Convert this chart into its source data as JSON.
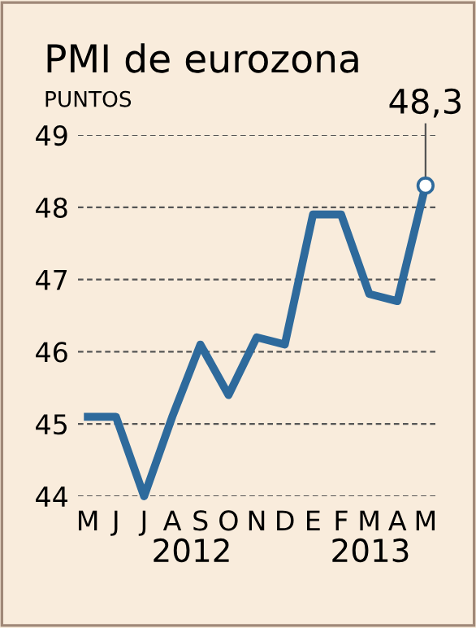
{
  "chart_data": {
    "type": "line",
    "title": "PMI de eurozona",
    "ylabel": "PUNTOS",
    "categories": [
      "M",
      "J",
      "J",
      "A",
      "S",
      "O",
      "N",
      "D",
      "E",
      "F",
      "M",
      "A",
      "M"
    ],
    "series": [
      {
        "color": "#2e6a9c",
        "values": [
          45.1,
          45.1,
          44.0,
          45.1,
          46.1,
          45.4,
          46.2,
          46.1,
          47.9,
          47.9,
          46.8,
          46.7,
          48.3
        ],
        "value_labels": [
          null,
          null,
          null,
          null,
          null,
          null,
          null,
          null,
          null,
          null,
          null,
          null,
          "48,3"
        ]
      }
    ],
    "annotations": [
      "2012",
      "2013"
    ],
    "ylim": [
      44,
      49
    ],
    "yticks": [
      44,
      45,
      46,
      47,
      48,
      49
    ],
    "grid": "y",
    "marker": "none",
    "line_style": "solid"
  }
}
